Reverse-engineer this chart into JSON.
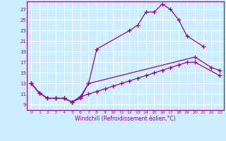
{
  "xlabel": "Windchill (Refroidissement éolien,°C)",
  "bg_color": "#cceeff",
  "line_color": "#990099",
  "grid_color": "#ffffff",
  "xticks": [
    0,
    1,
    2,
    3,
    4,
    5,
    6,
    7,
    8,
    9,
    10,
    11,
    12,
    13,
    14,
    15,
    16,
    17,
    18,
    19,
    20,
    21,
    22,
    23
  ],
  "yticks": [
    9,
    11,
    13,
    15,
    17,
    19,
    21,
    23,
    25,
    27
  ],
  "ylim": [
    8.0,
    28.5
  ],
  "xlim": [
    -0.5,
    23.5
  ],
  "series": [
    {
      "x": [
        0,
        1,
        2,
        3,
        4,
        5,
        6,
        7,
        8,
        12,
        13,
        14,
        15,
        16,
        17,
        18,
        19,
        21
      ],
      "y": [
        13.0,
        11.2,
        10.2,
        10.2,
        10.2,
        9.5,
        10.2,
        13.0,
        19.5,
        23.0,
        24.0,
        26.5,
        26.5,
        28.0,
        27.0,
        25.0,
        22.0,
        20.0
      ]
    },
    {
      "x": [
        0,
        1,
        2,
        3,
        4,
        5,
        6,
        7,
        20,
        22,
        23
      ],
      "y": [
        13.0,
        11.2,
        10.2,
        10.2,
        10.2,
        9.5,
        10.5,
        13.0,
        18.0,
        16.0,
        15.5
      ]
    },
    {
      "x": [
        0,
        1,
        2,
        3,
        4,
        5,
        6,
        7,
        8,
        9,
        10,
        11,
        12,
        13,
        14,
        15,
        16,
        17,
        18,
        19,
        20,
        23
      ],
      "y": [
        13.0,
        11.2,
        10.2,
        10.2,
        10.2,
        9.5,
        10.5,
        11.0,
        11.5,
        12.0,
        12.5,
        13.0,
        13.5,
        14.0,
        14.5,
        15.0,
        15.5,
        16.0,
        16.5,
        17.0,
        17.0,
        14.5
      ]
    }
  ]
}
